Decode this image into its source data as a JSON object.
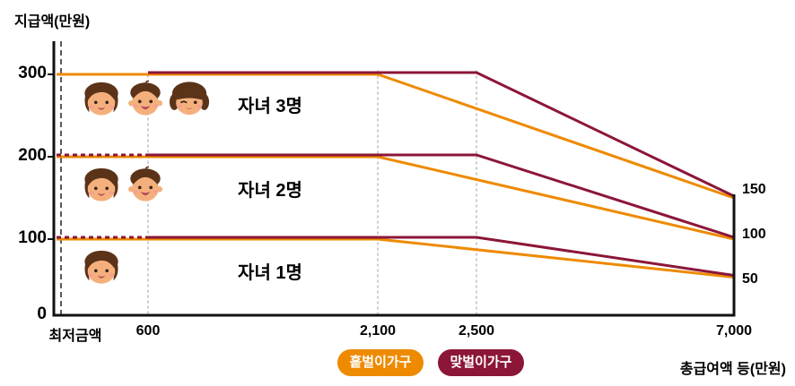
{
  "labels": {
    "y_axis_title": "지급액(만원)",
    "x_axis_title": "총급여액 등(만원)"
  },
  "legend": [
    {
      "label": "홑벌이가구",
      "color": "#EE8A00"
    },
    {
      "label": "맞벌이가구",
      "color": "#8C1638"
    }
  ],
  "groups": [
    {
      "label": "자녀 3명",
      "children": 3,
      "icons": [
        "girl-face-icon",
        "boy-face-icon",
        "winking-girl-face-icon"
      ]
    },
    {
      "label": "자녀 2명",
      "children": 2,
      "icons": [
        "girl-face-icon",
        "boy-face-icon"
      ]
    },
    {
      "label": "자녀 1명",
      "children": 1,
      "icons": [
        "girl-face-icon"
      ]
    }
  ],
  "chart_data": {
    "type": "line",
    "xlabel": "총급여액 등(만원)",
    "ylabel": "지급액(만원)",
    "x_range": [
      0,
      7000
    ],
    "y_range": [
      0,
      300
    ],
    "x_tick_labels": [
      "최저금액",
      "600",
      "2,100",
      "2,500",
      "7,000"
    ],
    "x_tick_values": [
      0,
      600,
      2100,
      2500,
      7000
    ],
    "y_tick_labels": [
      "300",
      "200",
      "100",
      "0"
    ],
    "y_tick_values": [
      300,
      200,
      100,
      0
    ],
    "right_value_labels": [
      "150",
      "100",
      "50"
    ],
    "series": [
      {
        "group": "자녀 3명",
        "household": "홑벌이가구",
        "color": "#EE8A00",
        "segments": [
          {
            "style": "solid",
            "points": [
              [
                0,
                300
              ],
              [
                2100,
                300
              ],
              [
                7000,
                150
              ]
            ]
          }
        ]
      },
      {
        "group": "자녀 3명",
        "household": "맞벌이가구",
        "color": "#8C1638",
        "segments": [
          {
            "style": "solid",
            "points": [
              [
                600,
                300
              ],
              [
                2500,
                300
              ],
              [
                7000,
                150
              ]
            ]
          }
        ]
      },
      {
        "group": "자녀 2명",
        "household": "홑벌이가구",
        "color": "#EE8A00",
        "segments": [
          {
            "style": "solid",
            "points": [
              [
                0,
                200
              ],
              [
                2100,
                200
              ],
              [
                7000,
                100
              ]
            ]
          }
        ]
      },
      {
        "group": "자녀 2명",
        "household": "맞벌이가구",
        "color": "#8C1638",
        "segments": [
          {
            "style": "dashed",
            "points": [
              [
                0,
                200
              ],
              [
                600,
                200
              ]
            ]
          },
          {
            "style": "solid",
            "points": [
              [
                600,
                200
              ],
              [
                2500,
                200
              ],
              [
                7000,
                100
              ]
            ]
          }
        ]
      },
      {
        "group": "자녀 1명",
        "household": "홑벌이가구",
        "color": "#EE8A00",
        "segments": [
          {
            "style": "solid",
            "points": [
              [
                0,
                100
              ],
              [
                2100,
                100
              ],
              [
                7000,
                50
              ]
            ]
          }
        ]
      },
      {
        "group": "자녀 1명",
        "household": "맞벌이가구",
        "color": "#8C1638",
        "segments": [
          {
            "style": "dashed",
            "points": [
              [
                0,
                100
              ],
              [
                600,
                100
              ]
            ]
          },
          {
            "style": "solid",
            "points": [
              [
                600,
                100
              ],
              [
                2500,
                100
              ],
              [
                7000,
                50
              ]
            ]
          }
        ]
      }
    ]
  }
}
